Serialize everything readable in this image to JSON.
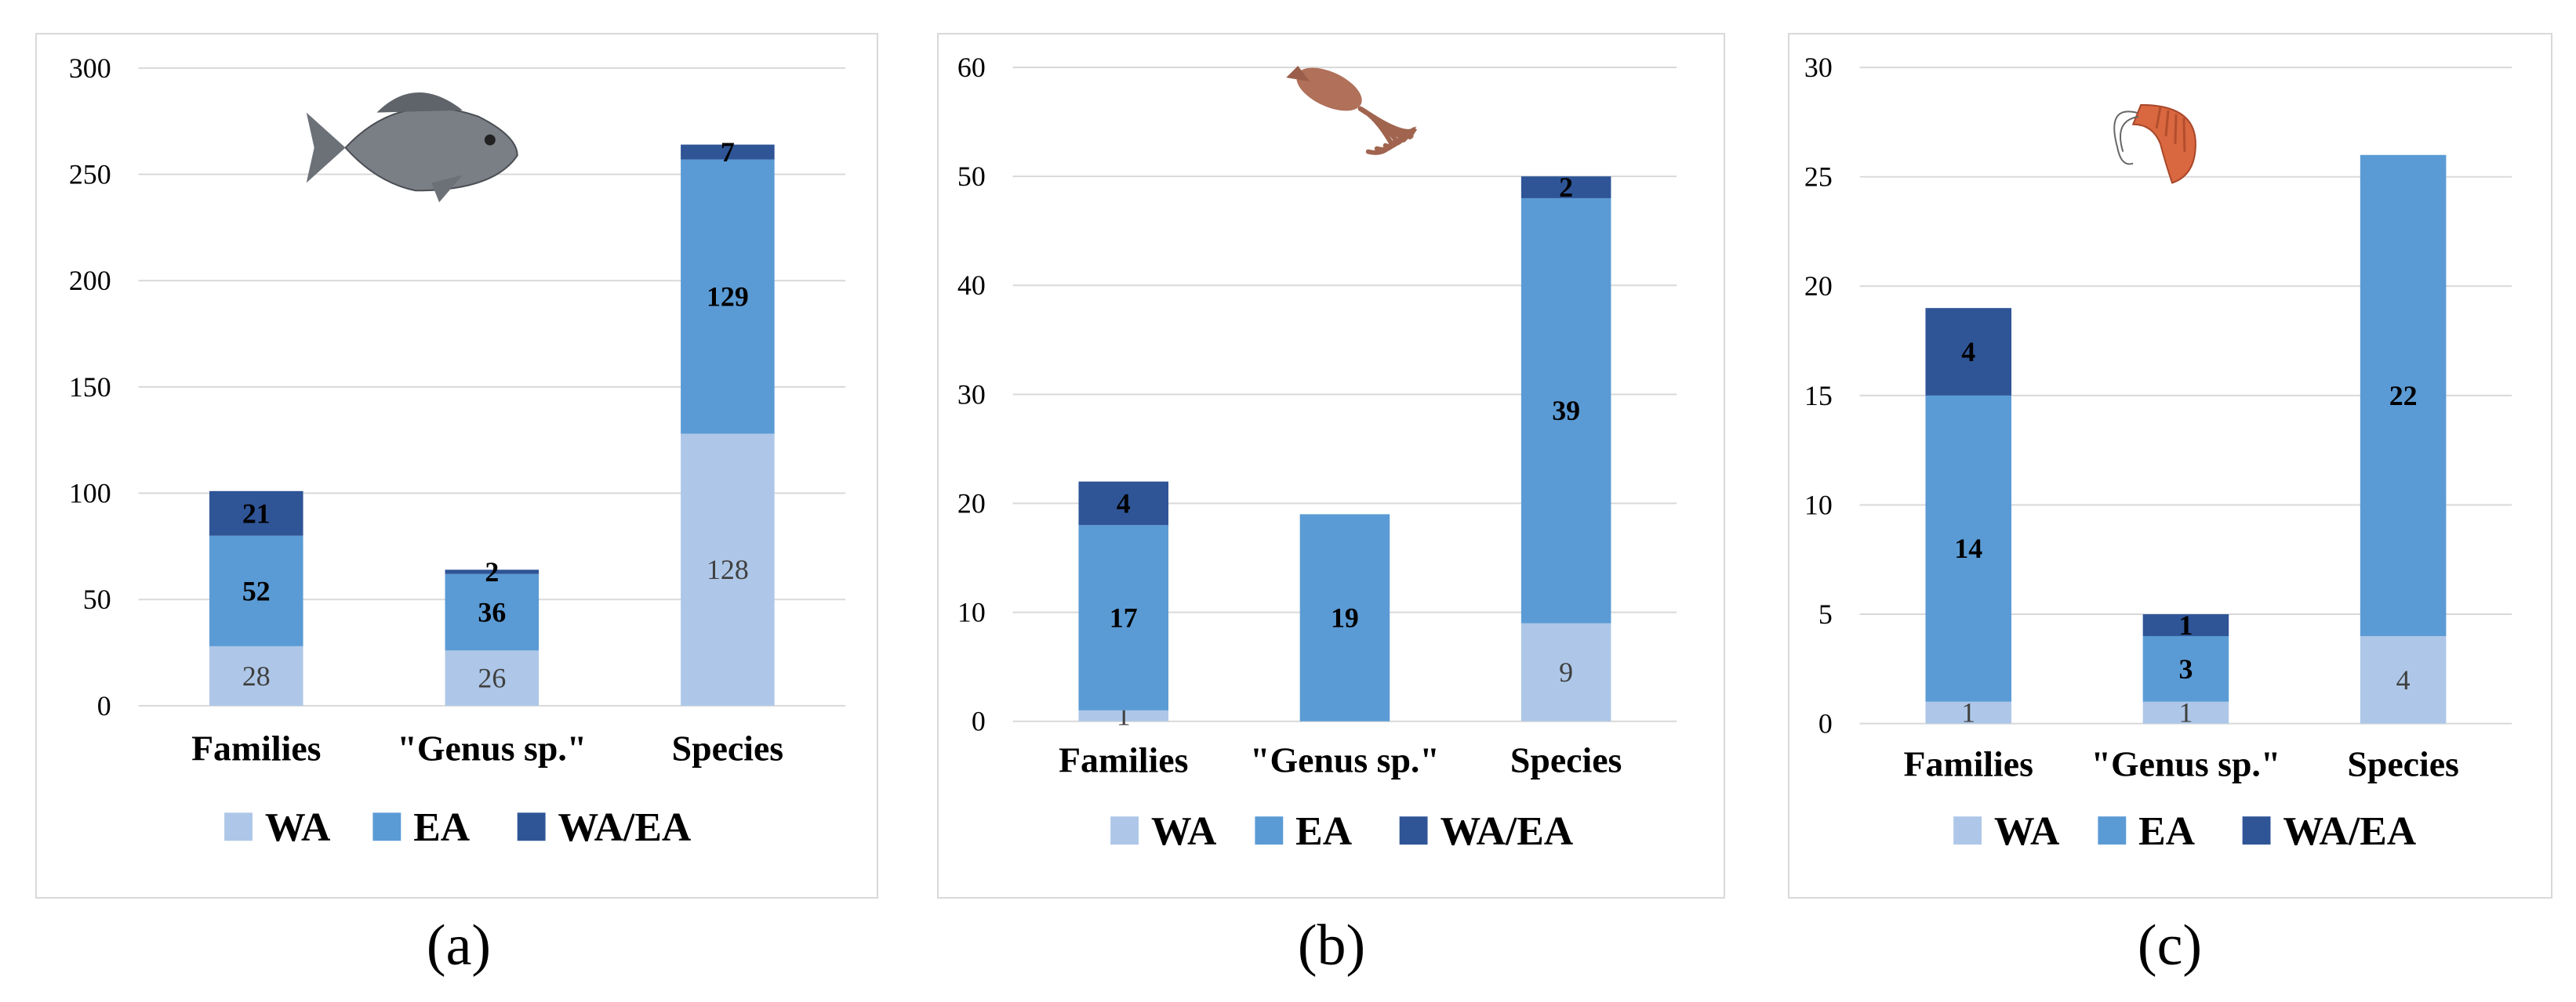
{
  "colors": {
    "WA": "#aec7e8",
    "EA": "#5b9bd5",
    "WA/EA": "#2f5597",
    "grid": "#d9d9d9"
  },
  "legend": [
    "WA",
    "EA",
    "WA/EA"
  ],
  "chart_data": [
    {
      "type": "bar",
      "stacked": true,
      "icon": "fish-icon",
      "caption": "(a)",
      "categories": [
        "Families",
        "\"Genus sp.\"",
        "Species"
      ],
      "series": [
        {
          "name": "WA",
          "values": [
            28,
            26,
            128
          ]
        },
        {
          "name": "EA",
          "values": [
            52,
            36,
            129
          ]
        },
        {
          "name": "WA/EA",
          "values": [
            21,
            2,
            7
          ]
        }
      ],
      "ylim": [
        0,
        300
      ],
      "yticks": [
        0,
        50,
        100,
        150,
        200,
        250,
        300
      ],
      "grid": true,
      "legend_position": "bottom"
    },
    {
      "type": "bar",
      "stacked": true,
      "icon": "squid-icon",
      "caption": "(b)",
      "categories": [
        "Families",
        "\"Genus sp.\"",
        "Species"
      ],
      "series": [
        {
          "name": "WA",
          "values": [
            1,
            0,
            9
          ]
        },
        {
          "name": "EA",
          "values": [
            17,
            19,
            39
          ]
        },
        {
          "name": "WA/EA",
          "values": [
            4,
            0,
            2
          ]
        }
      ],
      "ylim": [
        0,
        60
      ],
      "yticks": [
        0,
        10,
        20,
        30,
        40,
        50,
        60
      ],
      "grid": true,
      "legend_position": "bottom"
    },
    {
      "type": "bar",
      "stacked": true,
      "icon": "shrimp-icon",
      "caption": "(c)",
      "categories": [
        "Families",
        "\"Genus sp.\"",
        "Species"
      ],
      "series": [
        {
          "name": "WA",
          "values": [
            1,
            1,
            4
          ]
        },
        {
          "name": "EA",
          "values": [
            14,
            3,
            22
          ]
        },
        {
          "name": "WA/EA",
          "values": [
            4,
            1,
            0
          ]
        }
      ],
      "ylim": [
        0,
        30
      ],
      "yticks": [
        0,
        5,
        10,
        15,
        20,
        25,
        30
      ],
      "grid": true,
      "legend_position": "bottom"
    }
  ]
}
